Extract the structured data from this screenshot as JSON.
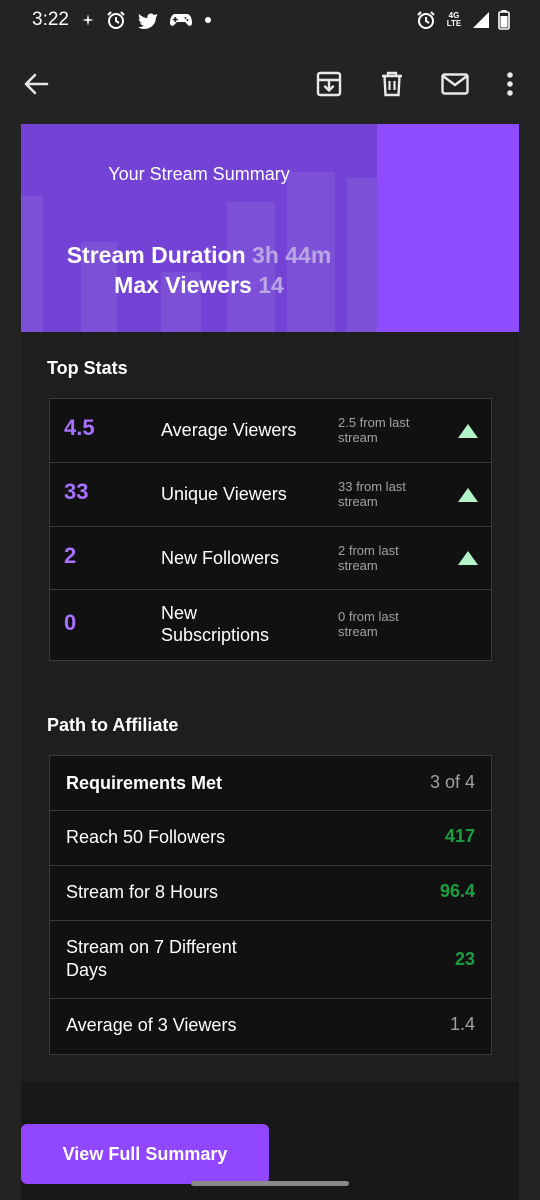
{
  "status_bar": {
    "time": "3:22",
    "network_label": "4G LTE",
    "icons_left": [
      "sparkle-icon",
      "alarm-icon",
      "twitter-icon",
      "gamepad-icon",
      "dot-icon"
    ],
    "icons_right": [
      "alarm-icon",
      "network-4g-icon",
      "signal-icon",
      "battery-icon"
    ]
  },
  "app_bar": {
    "icons": [
      "back-arrow-icon",
      "archive-icon",
      "delete-icon",
      "mail-icon",
      "more-vert-icon"
    ]
  },
  "banner": {
    "title": "Your Stream Summary",
    "duration_label": "Stream Duration",
    "duration_value": "3h 44m",
    "viewers_label": "Max Viewers",
    "viewers_value": "14"
  },
  "top_stats": {
    "title": "Top Stats",
    "rows": [
      {
        "value": "4.5",
        "label": "Average Viewers",
        "change": "2.5 from last stream",
        "trend": "up"
      },
      {
        "value": "33",
        "label": "Unique Viewers",
        "change": "33 from last stream",
        "trend": "up"
      },
      {
        "value": "2",
        "label": "New Followers",
        "change": "2 from last stream",
        "trend": "up"
      },
      {
        "value": "0",
        "label": "New Subscriptions",
        "change": "0 from last stream",
        "trend": "none"
      }
    ]
  },
  "affiliate": {
    "title": "Path to Affiliate",
    "rows": [
      {
        "label": "Requirements Met",
        "value": "3 of 4",
        "style": "header"
      },
      {
        "label": "Reach 50 Followers",
        "value": "417",
        "style": "met"
      },
      {
        "label": "Stream for 8 Hours",
        "value": "96.4",
        "style": "met"
      },
      {
        "label": "Stream on 7 Different Days",
        "value": "23",
        "style": "met"
      },
      {
        "label": "Average of 3 Viewers",
        "value": "1.4",
        "style": "unmet"
      }
    ]
  },
  "cta": {
    "label": "View Full Summary"
  },
  "colors": {
    "accent": "#9147ff",
    "stat_value": "#a970ff",
    "met_green": "#1a9e40",
    "trend_up": "#b3f5c8"
  }
}
